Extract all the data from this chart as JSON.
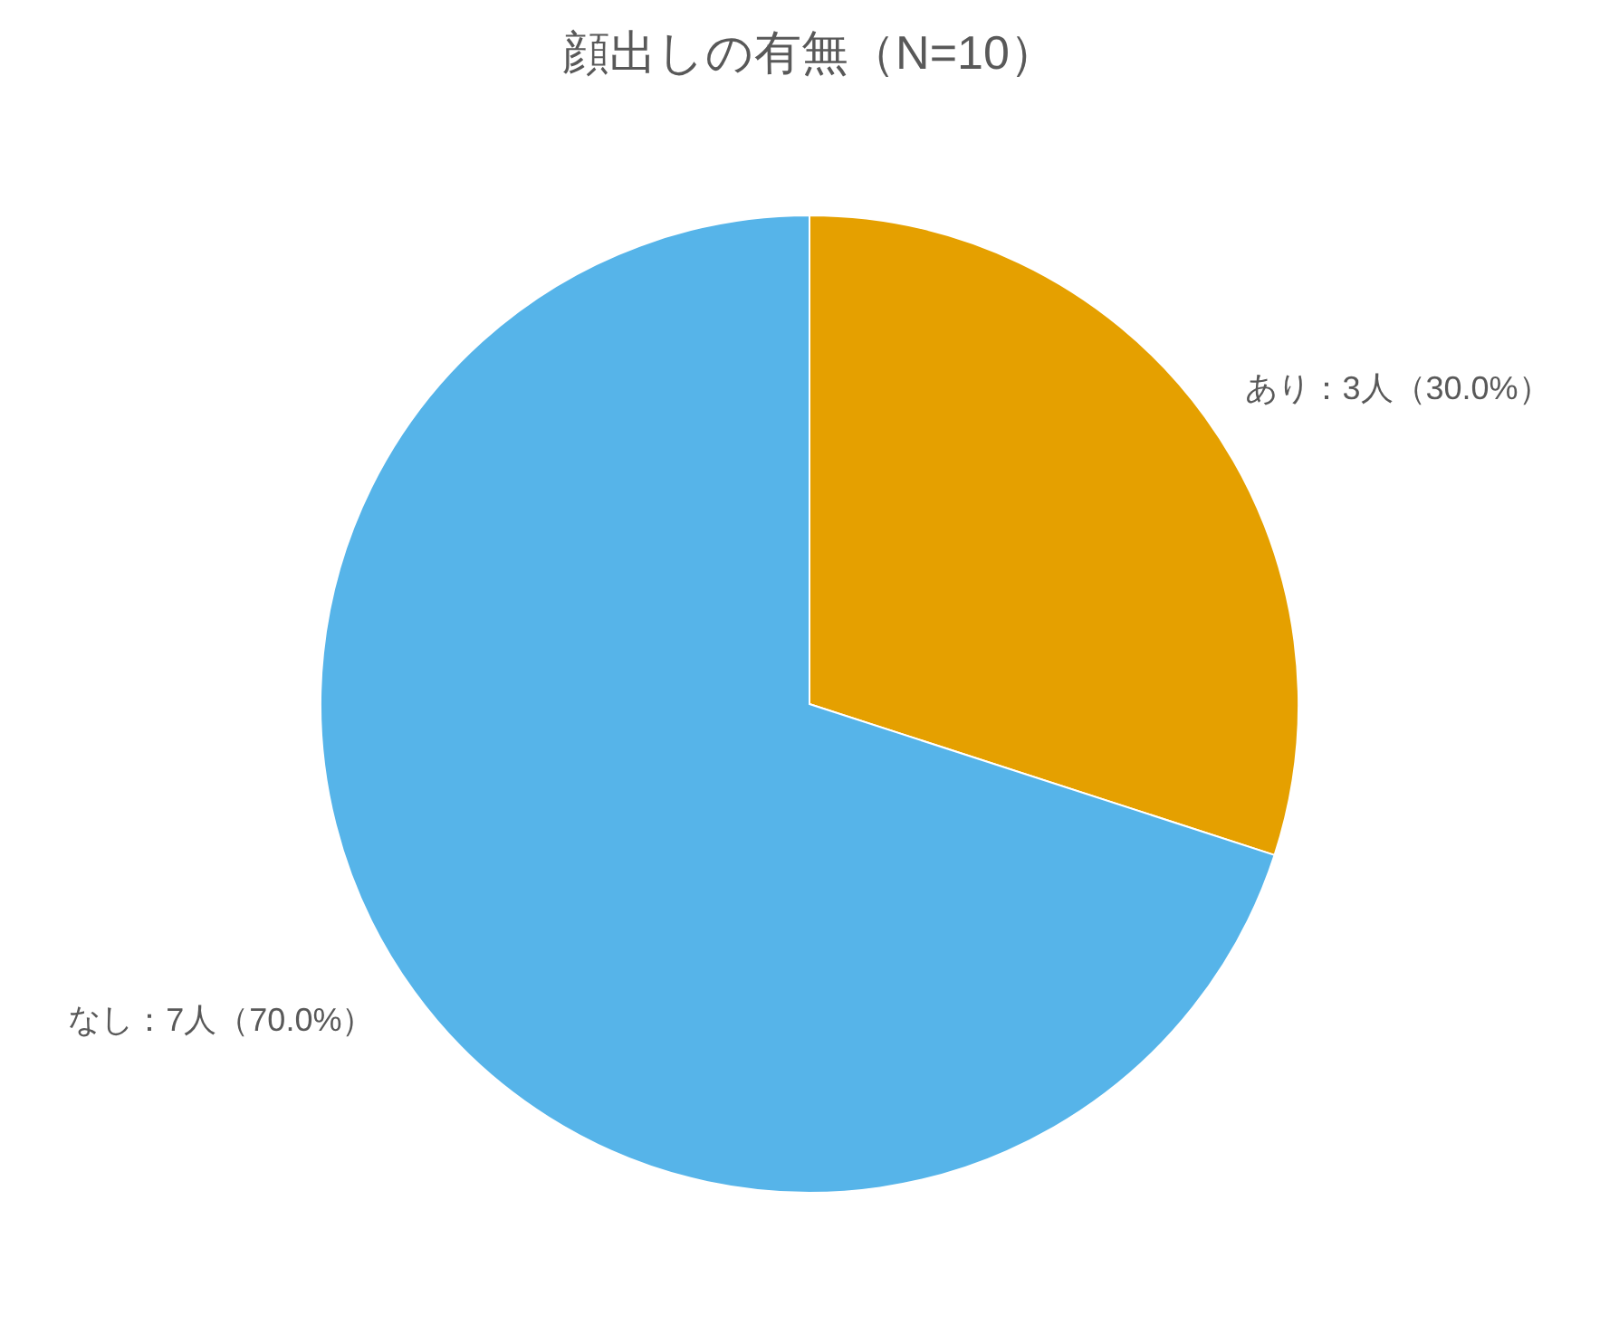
{
  "chart_data": {
    "type": "pie",
    "title": "顔出しの有無（N=10）",
    "categories": [
      "あり：3人（30.0%）",
      "なし：7人（70.0%）"
    ],
    "values": [
      3,
      7
    ],
    "colors": [
      "#e5a000",
      "#56b4e9"
    ],
    "legend": false
  }
}
